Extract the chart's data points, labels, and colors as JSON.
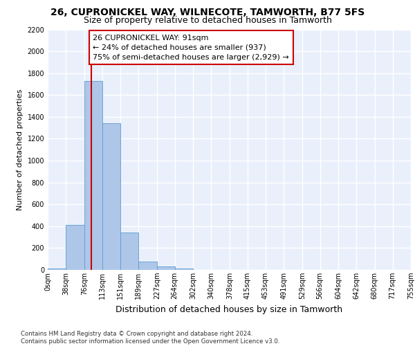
{
  "title": "26, CUPRONICKEL WAY, WILNECOTE, TAMWORTH, B77 5FS",
  "subtitle": "Size of property relative to detached houses in Tamworth",
  "xlabel": "Distribution of detached houses by size in Tamworth",
  "ylabel": "Number of detached properties",
  "bin_edges": [
    0,
    38,
    76,
    113,
    151,
    189,
    227,
    264,
    302,
    340,
    378,
    415,
    453,
    491,
    529,
    566,
    604,
    642,
    680,
    717,
    755
  ],
  "bar_heights": [
    15,
    410,
    1730,
    1340,
    340,
    75,
    30,
    15,
    0,
    0,
    0,
    0,
    0,
    0,
    0,
    0,
    0,
    0,
    0,
    0
  ],
  "bar_color": "#aec6e8",
  "bar_edge_color": "#5b9bd5",
  "ylim": [
    0,
    2200
  ],
  "yticks": [
    0,
    200,
    400,
    600,
    800,
    1000,
    1200,
    1400,
    1600,
    1800,
    2000,
    2200
  ],
  "property_sqm": 91,
  "property_line_color": "#cc0000",
  "annotation_text": "26 CUPRONICKEL WAY: 91sqm\n← 24% of detached houses are smaller (937)\n75% of semi-detached houses are larger (2,929) →",
  "annotation_box_color": "#ffffff",
  "annotation_box_edge": "#cc0000",
  "footer_text": "Contains HM Land Registry data © Crown copyright and database right 2024.\nContains public sector information licensed under the Open Government Licence v3.0.",
  "bg_color": "#eaf0fb",
  "grid_color": "#ffffff",
  "title_fontsize": 10,
  "subtitle_fontsize": 9,
  "xlabel_fontsize": 9,
  "ylabel_fontsize": 8,
  "tick_fontsize": 7,
  "annot_fontsize": 8
}
